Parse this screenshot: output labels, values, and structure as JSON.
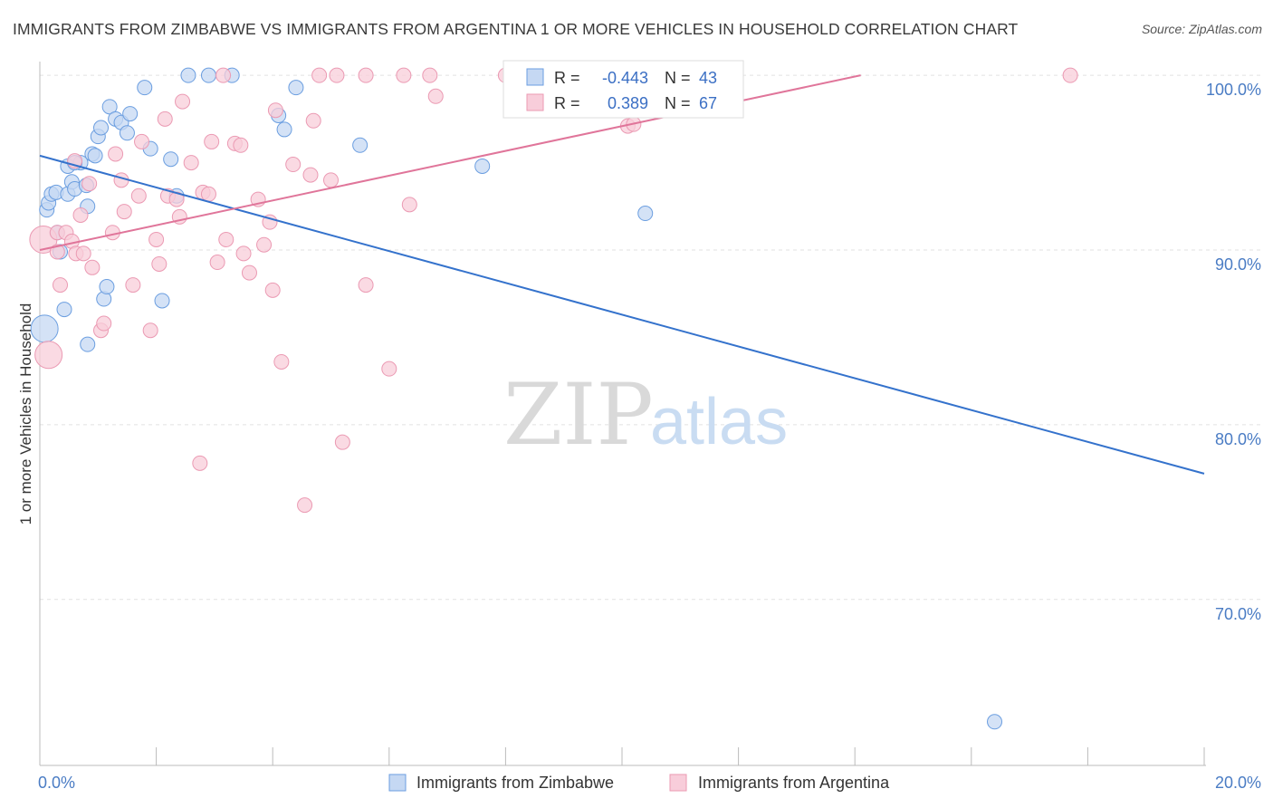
{
  "title": "IMMIGRANTS FROM ZIMBABWE VS IMMIGRANTS FROM ARGENTINA 1 OR MORE VEHICLES IN HOUSEHOLD CORRELATION CHART",
  "source": "Source: ZipAtlas.com",
  "watermark": {
    "zip": "ZIP",
    "atlas": "atlas"
  },
  "chart_data": {
    "type": "scatter",
    "title": "IMMIGRANTS FROM ZIMBABWE VS IMMIGRANTS FROM ARGENTINA 1 OR MORE VEHICLES IN HOUSEHOLD CORRELATION CHART",
    "xlabel": "",
    "ylabel": "1 or more Vehicles in Household",
    "xlim": [
      0,
      20
    ],
    "ylim": [
      60.5,
      101.2
    ],
    "x_tick_labels": [
      "0.0%",
      "20.0%"
    ],
    "y_ticks": [
      {
        "value": 100,
        "label": "100.0%"
      },
      {
        "value": 90,
        "label": "90.0%"
      },
      {
        "value": 80,
        "label": "80.0%"
      },
      {
        "value": 70,
        "label": "70.0%"
      }
    ],
    "legend": {
      "stats": [
        {
          "r_label": "R = ",
          "r_value": "-0.443",
          "n_label": "N = ",
          "n_value": "43"
        },
        {
          "r_label": "R = ",
          "r_value": "0.389",
          "n_label": "N = ",
          "n_value": "67"
        }
      ]
    },
    "series": [
      {
        "name": "Immigrants from Zimbabwe",
        "color": "#6b9ee0",
        "fill": "#c5d8f3",
        "trend_color": "#3472cc",
        "trend": {
          "x0": 0.0,
          "y0": 95.4,
          "x1": 20.0,
          "y1": 77.2
        },
        "points": [
          {
            "x": 0.08,
            "y": 85.5,
            "big": true
          },
          {
            "x": 0.12,
            "y": 92.3
          },
          {
            "x": 0.15,
            "y": 92.7
          },
          {
            "x": 0.2,
            "y": 93.2
          },
          {
            "x": 0.28,
            "y": 93.3
          },
          {
            "x": 0.3,
            "y": 91.0
          },
          {
            "x": 0.35,
            "y": 89.9
          },
          {
            "x": 0.42,
            "y": 86.6
          },
          {
            "x": 0.48,
            "y": 93.2
          },
          {
            "x": 0.48,
            "y": 94.8
          },
          {
            "x": 0.55,
            "y": 93.9
          },
          {
            "x": 0.6,
            "y": 93.5
          },
          {
            "x": 0.7,
            "y": 95.0
          },
          {
            "x": 0.8,
            "y": 93.7
          },
          {
            "x": 0.82,
            "y": 92.5
          },
          {
            "x": 0.9,
            "y": 95.5
          },
          {
            "x": 0.95,
            "y": 95.4
          },
          {
            "x": 1.0,
            "y": 96.5
          },
          {
            "x": 1.05,
            "y": 97.0
          },
          {
            "x": 1.1,
            "y": 87.2
          },
          {
            "x": 1.15,
            "y": 87.9
          },
          {
            "x": 1.2,
            "y": 98.2
          },
          {
            "x": 1.3,
            "y": 97.5
          },
          {
            "x": 1.4,
            "y": 97.3
          },
          {
            "x": 1.5,
            "y": 96.7
          },
          {
            "x": 1.55,
            "y": 97.8
          },
          {
            "x": 1.8,
            "y": 99.3
          },
          {
            "x": 1.9,
            "y": 95.8
          },
          {
            "x": 2.1,
            "y": 87.1
          },
          {
            "x": 2.25,
            "y": 95.2
          },
          {
            "x": 2.35,
            "y": 93.1
          },
          {
            "x": 2.55,
            "y": 100.0
          },
          {
            "x": 2.9,
            "y": 100.0
          },
          {
            "x": 3.3,
            "y": 100.0
          },
          {
            "x": 4.1,
            "y": 97.7
          },
          {
            "x": 4.2,
            "y": 96.9
          },
          {
            "x": 4.4,
            "y": 99.3
          },
          {
            "x": 5.5,
            "y": 96.0
          },
          {
            "x": 7.6,
            "y": 94.8
          },
          {
            "x": 10.4,
            "y": 92.1
          },
          {
            "x": 16.4,
            "y": 63.0
          },
          {
            "x": 0.82,
            "y": 84.6
          },
          {
            "x": 0.6,
            "y": 95.0
          }
        ]
      },
      {
        "name": "Immigrants from Argentina",
        "color": "#eb9ab3",
        "fill": "#f8cdda",
        "trend_color": "#e0759a",
        "trend": {
          "x0": 0.0,
          "y0": 90.0,
          "x1": 14.1,
          "y1": 100.0
        },
        "points": [
          {
            "x": 0.06,
            "y": 90.6,
            "big": true
          },
          {
            "x": 0.15,
            "y": 84.0,
            "big": true
          },
          {
            "x": 0.3,
            "y": 91.0
          },
          {
            "x": 0.3,
            "y": 89.9
          },
          {
            "x": 0.35,
            "y": 88.0
          },
          {
            "x": 0.45,
            "y": 91.0
          },
          {
            "x": 0.55,
            "y": 90.5
          },
          {
            "x": 0.6,
            "y": 95.1
          },
          {
            "x": 0.62,
            "y": 89.8
          },
          {
            "x": 0.7,
            "y": 92.0
          },
          {
            "x": 0.75,
            "y": 89.8
          },
          {
            "x": 0.85,
            "y": 93.8
          },
          {
            "x": 0.9,
            "y": 89.0
          },
          {
            "x": 1.05,
            "y": 85.4
          },
          {
            "x": 1.1,
            "y": 85.8
          },
          {
            "x": 1.25,
            "y": 91.0
          },
          {
            "x": 1.3,
            "y": 95.5
          },
          {
            "x": 1.4,
            "y": 94.0
          },
          {
            "x": 1.45,
            "y": 92.2
          },
          {
            "x": 1.6,
            "y": 88.0
          },
          {
            "x": 1.7,
            "y": 93.1
          },
          {
            "x": 1.75,
            "y": 96.2
          },
          {
            "x": 1.9,
            "y": 85.4
          },
          {
            "x": 2.0,
            "y": 90.6
          },
          {
            "x": 2.05,
            "y": 89.2
          },
          {
            "x": 2.15,
            "y": 97.5
          },
          {
            "x": 2.2,
            "y": 93.1
          },
          {
            "x": 2.35,
            "y": 92.9
          },
          {
            "x": 2.4,
            "y": 91.9
          },
          {
            "x": 2.45,
            "y": 98.5
          },
          {
            "x": 2.6,
            "y": 95.0
          },
          {
            "x": 2.75,
            "y": 77.8
          },
          {
            "x": 2.8,
            "y": 93.3
          },
          {
            "x": 2.9,
            "y": 93.2
          },
          {
            "x": 2.95,
            "y": 96.2
          },
          {
            "x": 3.05,
            "y": 89.3
          },
          {
            "x": 3.15,
            "y": 100.0
          },
          {
            "x": 3.2,
            "y": 90.6
          },
          {
            "x": 3.35,
            "y": 96.1
          },
          {
            "x": 3.45,
            "y": 96.0
          },
          {
            "x": 3.5,
            "y": 89.8
          },
          {
            "x": 3.6,
            "y": 88.7
          },
          {
            "x": 3.75,
            "y": 92.9
          },
          {
            "x": 3.85,
            "y": 90.3
          },
          {
            "x": 3.95,
            "y": 91.6
          },
          {
            "x": 4.0,
            "y": 87.7
          },
          {
            "x": 4.05,
            "y": 98.0
          },
          {
            "x": 4.15,
            "y": 83.6
          },
          {
            "x": 4.35,
            "y": 94.9
          },
          {
            "x": 4.55,
            "y": 75.4
          },
          {
            "x": 4.65,
            "y": 94.3
          },
          {
            "x": 4.7,
            "y": 97.4
          },
          {
            "x": 4.8,
            "y": 100.0
          },
          {
            "x": 5.0,
            "y": 94.0
          },
          {
            "x": 5.1,
            "y": 100.0
          },
          {
            "x": 5.2,
            "y": 79.0
          },
          {
            "x": 5.6,
            "y": 88.0
          },
          {
            "x": 5.6,
            "y": 100.0
          },
          {
            "x": 6.0,
            "y": 83.2
          },
          {
            "x": 6.25,
            "y": 100.0
          },
          {
            "x": 6.35,
            "y": 92.6
          },
          {
            "x": 6.7,
            "y": 100.0
          },
          {
            "x": 6.8,
            "y": 98.8
          },
          {
            "x": 8.0,
            "y": 100.0
          },
          {
            "x": 10.1,
            "y": 97.1
          },
          {
            "x": 10.2,
            "y": 97.2
          },
          {
            "x": 17.7,
            "y": 100.0
          }
        ]
      }
    ]
  }
}
